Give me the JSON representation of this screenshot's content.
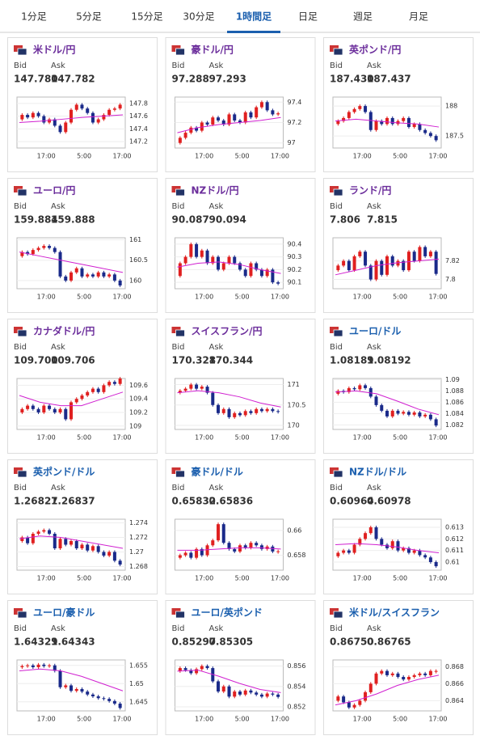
{
  "tabs": [
    "1分足",
    "5分足",
    "15分足",
    "30分足",
    "1時間足",
    "日足",
    "週足",
    "月足"
  ],
  "active_tab": 4,
  "bid_label": "Bid",
  "ask_label": "Ask",
  "xlabels": [
    "17:00",
    "5:00",
    "17:00"
  ],
  "up_color": "#e02020",
  "down_color": "#1a2a8a",
  "ma_color": "#d020d0",
  "cards": [
    {
      "name": "米ドル/円",
      "color": "#6b2d9b",
      "bid": "147.780",
      "ask": "147.782",
      "ylim": [
        147.1,
        147.9
      ],
      "yticks": [
        147.2,
        147.4,
        147.6,
        147.8
      ],
      "closes": [
        147.55,
        147.62,
        147.58,
        147.65,
        147.6,
        147.5,
        147.55,
        147.45,
        147.35,
        147.5,
        147.7,
        147.78,
        147.72,
        147.65,
        147.5,
        147.55,
        147.62,
        147.7,
        147.72,
        147.78
      ],
      "ma": [
        147.5,
        147.52,
        147.55,
        147.58,
        147.6,
        147.62
      ]
    },
    {
      "name": "豪ドル/円",
      "color": "#6b2d9b",
      "bid": "97.288",
      "ask": "97.293",
      "ylim": [
        96.95,
        97.45
      ],
      "yticks": [
        97,
        97.2,
        97.4
      ],
      "closes": [
        97.0,
        97.05,
        97.1,
        97.15,
        97.12,
        97.2,
        97.18,
        97.25,
        97.22,
        97.18,
        97.28,
        97.22,
        97.2,
        97.3,
        97.25,
        97.35,
        97.4,
        97.32,
        97.28,
        97.29
      ],
      "ma": [
        97.1,
        97.15,
        97.18,
        97.2,
        97.22,
        97.25
      ]
    },
    {
      "name": "英ポンド/円",
      "color": "#6b2d9b",
      "bid": "187.430",
      "ask": "187.437",
      "ylim": [
        187.3,
        188.15
      ],
      "yticks": [
        187.5,
        188
      ],
      "closes": [
        187.7,
        187.75,
        187.8,
        187.9,
        187.95,
        188.0,
        187.9,
        187.6,
        187.75,
        187.7,
        187.8,
        187.7,
        187.75,
        187.8,
        187.65,
        187.7,
        187.6,
        187.55,
        187.5,
        187.43
      ],
      "ma": [
        187.75,
        187.78,
        187.75,
        187.72,
        187.7,
        187.65
      ]
    },
    {
      "name": "ユーロ/円",
      "color": "#6b2d9b",
      "bid": "159.884",
      "ask": "159.888",
      "ylim": [
        159.8,
        161.05
      ],
      "yticks": [
        160,
        160.5,
        161
      ],
      "closes": [
        160.6,
        160.7,
        160.65,
        160.75,
        160.8,
        160.85,
        160.8,
        160.7,
        160.1,
        160.0,
        160.2,
        160.3,
        160.1,
        160.15,
        160.1,
        160.2,
        160.1,
        160.15,
        160.0,
        159.88
      ],
      "ma": [
        160.7,
        160.6,
        160.5,
        160.4,
        160.3,
        160.2
      ]
    },
    {
      "name": "NZドル/円",
      "color": "#6b2d9b",
      "bid": "90.087",
      "ask": "90.094",
      "ylim": [
        90.05,
        90.45
      ],
      "yticks": [
        90.1,
        90.2,
        90.3,
        90.4
      ],
      "closes": [
        90.15,
        90.25,
        90.3,
        90.4,
        90.3,
        90.35,
        90.25,
        90.3,
        90.2,
        90.25,
        90.3,
        90.25,
        90.2,
        90.15,
        90.25,
        90.2,
        90.15,
        90.2,
        90.1,
        90.09
      ],
      "ma": [
        90.22,
        90.25,
        90.26,
        90.24,
        90.2,
        90.17
      ]
    },
    {
      "name": "ランド/円",
      "color": "#6b2d9b",
      "bid": "7.806",
      "ask": "7.815",
      "ylim": [
        7.79,
        7.845
      ],
      "yticks": [
        7.8,
        7.82
      ],
      "closes": [
        7.81,
        7.815,
        7.82,
        7.81,
        7.825,
        7.83,
        7.815,
        7.8,
        7.82,
        7.805,
        7.825,
        7.815,
        7.82,
        7.81,
        7.83,
        7.82,
        7.835,
        7.825,
        7.83,
        7.806
      ],
      "ma": [
        7.805,
        7.81,
        7.815,
        7.818,
        7.82,
        7.822
      ]
    },
    {
      "name": "カナダドル/円",
      "color": "#6b2d9b",
      "bid": "109.700",
      "ask": "109.706",
      "ylim": [
        108.95,
        109.7
      ],
      "yticks": [
        109,
        109.2,
        109.4,
        109.6
      ],
      "closes": [
        109.2,
        109.25,
        109.3,
        109.25,
        109.2,
        109.3,
        109.25,
        109.2,
        109.25,
        109.1,
        109.35,
        109.4,
        109.45,
        109.5,
        109.55,
        109.5,
        109.6,
        109.65,
        109.62,
        109.7
      ],
      "ma": [
        109.45,
        109.35,
        109.3,
        109.3,
        109.4,
        109.5
      ]
    },
    {
      "name": "スイスフラン/円",
      "color": "#6b2d9b",
      "bid": "170.328",
      "ask": "170.344",
      "ylim": [
        169.9,
        171.15
      ],
      "yticks": [
        170,
        170.5,
        171
      ],
      "closes": [
        170.8,
        170.85,
        170.9,
        171.0,
        170.9,
        170.95,
        170.8,
        170.5,
        170.3,
        170.4,
        170.2,
        170.3,
        170.25,
        170.35,
        170.3,
        170.4,
        170.35,
        170.4,
        170.35,
        170.33
      ],
      "ma": [
        170.8,
        170.85,
        170.8,
        170.7,
        170.55,
        170.45
      ]
    },
    {
      "name": "ユーロ/ドル",
      "color": "#1b5fae",
      "bid": "1.08189",
      "ask": "1.08192",
      "ylim": [
        1.0812,
        1.0902
      ],
      "yticks": [
        1.082,
        1.084,
        1.086,
        1.088,
        1.09
      ],
      "closes": [
        1.0875,
        1.088,
        1.0878,
        1.0885,
        1.0883,
        1.089,
        1.0885,
        1.087,
        1.0855,
        1.0845,
        1.0835,
        1.0845,
        1.084,
        1.0843,
        1.0838,
        1.0842,
        1.0835,
        1.0838,
        1.083,
        1.08189
      ],
      "ma": [
        1.0878,
        1.088,
        1.0875,
        1.0862,
        1.0848,
        1.0838
      ]
    },
    {
      "name": "英ポンド/ドル",
      "color": "#1b5fae",
      "bid": "1.26827",
      "ask": "1.26837",
      "ylim": [
        1.2675,
        1.2745
      ],
      "yticks": [
        1.268,
        1.27,
        1.272,
        1.274
      ],
      "closes": [
        1.2715,
        1.272,
        1.2712,
        1.2725,
        1.2728,
        1.273,
        1.2725,
        1.2705,
        1.2718,
        1.271,
        1.2715,
        1.2705,
        1.271,
        1.2702,
        1.2708,
        1.27,
        1.2695,
        1.27,
        1.2688,
        1.26827
      ],
      "ma": [
        1.2718,
        1.2722,
        1.272,
        1.2715,
        1.271,
        1.2705
      ]
    },
    {
      "name": "豪ドル/ドル",
      "color": "#1b5fae",
      "bid": "0.65832",
      "ask": "0.65836",
      "ylim": [
        0.6568,
        0.6609
      ],
      "yticks": [
        0.658,
        0.66
      ],
      "closes": [
        0.6578,
        0.658,
        0.6582,
        0.6578,
        0.6585,
        0.658,
        0.6588,
        0.6592,
        0.6605,
        0.659,
        0.6585,
        0.6583,
        0.6588,
        0.6586,
        0.659,
        0.6588,
        0.6585,
        0.6587,
        0.6583,
        0.65832
      ],
      "ma": [
        0.6584,
        0.6584,
        0.6585,
        0.6586,
        0.6586,
        0.6585
      ]
    },
    {
      "name": "NZドル/ドル",
      "color": "#1b5fae",
      "bid": "0.60964",
      "ask": "0.60978",
      "ylim": [
        0.6093,
        0.6137
      ],
      "yticks": [
        0.61,
        0.611,
        0.612,
        0.613
      ],
      "closes": [
        0.6105,
        0.6108,
        0.611,
        0.6108,
        0.6115,
        0.612,
        0.6125,
        0.613,
        0.612,
        0.6115,
        0.6112,
        0.6118,
        0.611,
        0.6112,
        0.6108,
        0.611,
        0.6106,
        0.6104,
        0.61,
        0.60964
      ],
      "ma": [
        0.6115,
        0.6116,
        0.6115,
        0.6113,
        0.611,
        0.6108
      ]
    },
    {
      "name": "ユーロ/豪ドル",
      "color": "#1b5fae",
      "bid": "1.64329",
      "ask": "1.64343",
      "ylim": [
        1.6425,
        1.6565
      ],
      "yticks": [
        1.645,
        1.65,
        1.655
      ],
      "closes": [
        1.6545,
        1.6548,
        1.655,
        1.6545,
        1.6552,
        1.6548,
        1.655,
        1.6535,
        1.649,
        1.6495,
        1.648,
        1.6485,
        1.6478,
        1.647,
        1.6465,
        1.646,
        1.6458,
        1.6452,
        1.6445,
        1.64329
      ],
      "ma": [
        1.6535,
        1.654,
        1.6535,
        1.652,
        1.65,
        1.648
      ]
    },
    {
      "name": "ユーロ/英ポンド",
      "color": "#1b5fae",
      "bid": "0.85297",
      "ask": "0.85305",
      "ylim": [
        0.8516,
        0.8566
      ],
      "yticks": [
        0.852,
        0.854,
        0.856
      ],
      "closes": [
        0.8555,
        0.8558,
        0.8556,
        0.8553,
        0.8557,
        0.856,
        0.8558,
        0.8545,
        0.8535,
        0.854,
        0.853,
        0.8535,
        0.8532,
        0.8536,
        0.8534,
        0.8532,
        0.853,
        0.8533,
        0.8532,
        0.85297
      ],
      "ma": [
        0.8555,
        0.8556,
        0.855,
        0.8543,
        0.8537,
        0.8534
      ]
    },
    {
      "name": "米ドル/スイスフラン",
      "color": "#1b5fae",
      "bid": "0.86750",
      "ask": "0.86765",
      "ylim": [
        0.8628,
        0.8688
      ],
      "yticks": [
        0.864,
        0.866,
        0.868
      ],
      "closes": [
        0.864,
        0.8645,
        0.8638,
        0.8632,
        0.8635,
        0.864,
        0.865,
        0.866,
        0.8672,
        0.8675,
        0.867,
        0.8672,
        0.8668,
        0.8665,
        0.8668,
        0.867,
        0.8672,
        0.867,
        0.8675,
        0.8675
      ],
      "ma": [
        0.8635,
        0.864,
        0.8648,
        0.8658,
        0.8665,
        0.867
      ]
    }
  ]
}
